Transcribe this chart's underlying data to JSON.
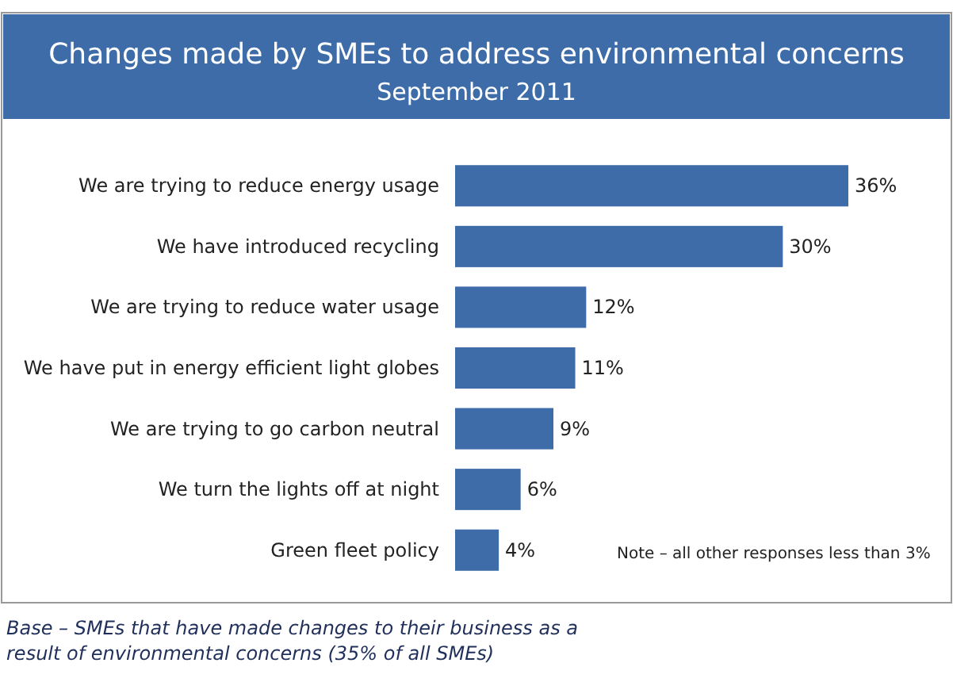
{
  "chart_data": {
    "type": "bar",
    "orientation": "horizontal",
    "title": "Changes made by SMEs to address environmental concerns",
    "subtitle": "September 2011",
    "categories": [
      "We are trying to reduce energy usage",
      "We have introduced recycling",
      "We are trying to reduce water usage",
      "We have put in energy efficient light globes",
      "We are trying to go carbon neutral",
      "We turn the lights off at night",
      "Green fleet policy"
    ],
    "values": [
      36,
      30,
      12,
      11,
      9,
      6,
      4
    ],
    "value_labels": [
      "36%",
      "30%",
      "12%",
      "11%",
      "9%",
      "6%",
      "4%"
    ],
    "color": "#3d6ca8",
    "annotations": [
      "Note – all other responses less than 3%",
      "Base – SMEs that have made changes to their business as a result of environmental concerns (35% of all SMEs)"
    ]
  }
}
